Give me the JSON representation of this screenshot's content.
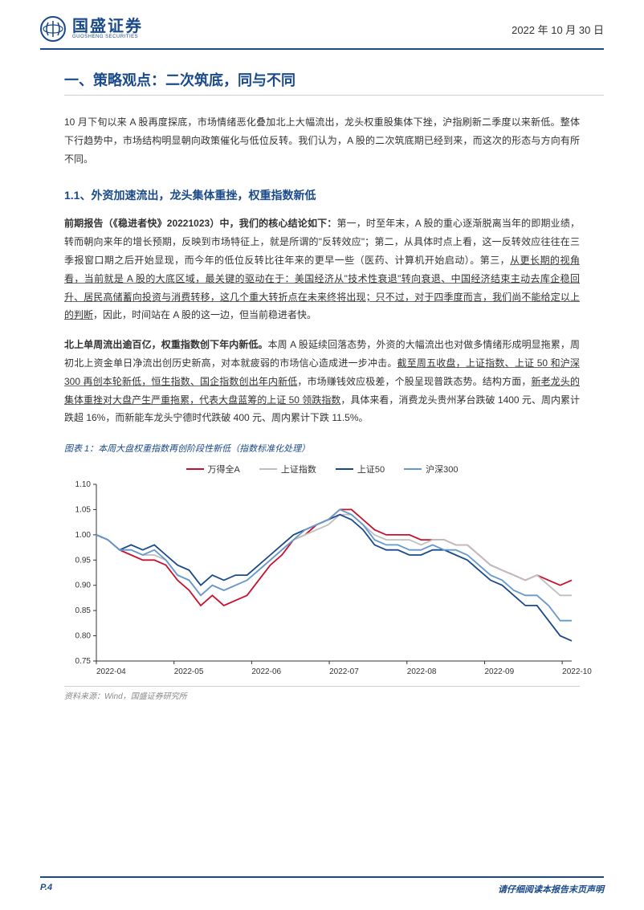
{
  "header": {
    "company_main": "国盛证券",
    "company_sub": "GUOSHENG SECURITIES",
    "date": "2022 年 10 月 30 日",
    "logo_color": "#1a4a8a"
  },
  "section_title": "一、策略观点：二次筑底，同与不同",
  "intro_para": "10 月下旬以来 A 股再度探底，市场情绪恶化叠加北上大幅流出，龙头权重股集体下挫，沪指刷新二季度以来新低。整体下行趋势中，市场结构明显朝向政策催化与低位反转。我们认为，A 股的二次筑底期已经到来，而这次的形态与方向有所不同。",
  "sub_title": "1.1、外资加速流出，龙头集体重挫，权重指数新低",
  "para1_bold": "前期报告（《稳进者快》20221023）中，我们的核心结论如下：",
  "para1_rest": "第一，时至年末，A 股的重心逐渐脱离当年的即期业绩，转而朝向来年的增长预期，反映到市场特征上，就是所谓的\"反转效应\"；第二，从具体时点上看，这一反转效应往往在三季报窗口期之后开始显现，而今年的低位反转比往年来的更早一些（医药、计算机开始启动）。第三，",
  "para1_ul": "从更长期的视角看，当前就是 A 股的大底区域，最关键的驱动在于：美国经济从\"技术性衰退\"转向衰退、中国经济结束主动去库企稳回升、居民高储蓄向投资与消费转移，这几个重大转折点在未来终将出现；只不过，对于四季度而言，我们尚不能给定以上的判断",
  "para1_tail": "，因此，时间站在 A 股的这一边，但当前稳进者快。",
  "para2_bold": "北上单周流出逾百亿，权重指数创下年内新低。",
  "para2_rest": "本周 A 股延续回落态势，外资的大幅流出也对做多情绪形成明显拖累，周初北上资金单日净流出创历史新高，对本就疲弱的市场信心造成进一步冲击。",
  "para2_ul1": "截至周五收盘，上证指数、上证 50 和沪深 300 再创本轮新低，恒生指数、国企指数创出年内新低",
  "para2_mid": "，市场赚钱效应极差，个股呈现普跌态势。结构方面，",
  "para2_ul2": "新老龙头的集体重挫对大盘产生严重拖累，代表大盘蓝筹的上证 50 领跌指数",
  "para2_tail": "，具体来看，消费龙头贵州茅台跌破 1400 元、周内累计跌超 16%，而新能车龙头宁德时代跌破 400 元、周内累计下跌 11.5%。",
  "chart": {
    "caption": "图表 1：本周大盘权重指数再创阶段性新低（指数标准化处理）",
    "source": "资料来源：Wind，国盛证券研究所",
    "type": "line",
    "x_labels": [
      "2022-04",
      "2022-05",
      "2022-06",
      "2022-07",
      "2022-08",
      "2022-09",
      "2022-10"
    ],
    "ylim": [
      0.75,
      1.1
    ],
    "ytick_step": 0.05,
    "background_color": "#ffffff",
    "axis_color": "#333333",
    "grid_color": "#ffffff",
    "label_fontsize": 10,
    "line_width": 1.8,
    "series": [
      {
        "name": "万得全A",
        "color": "#c8102e",
        "data": [
          1.0,
          0.99,
          0.97,
          0.96,
          0.95,
          0.95,
          0.94,
          0.91,
          0.89,
          0.86,
          0.88,
          0.86,
          0.87,
          0.88,
          0.91,
          0.94,
          0.96,
          0.99,
          1.0,
          1.02,
          1.03,
          1.05,
          1.05,
          1.03,
          1.01,
          1.0,
          1.0,
          1.0,
          0.99,
          0.99,
          0.99,
          0.98,
          0.98,
          0.96,
          0.94,
          0.93,
          0.92,
          0.91,
          0.92,
          0.91,
          0.9,
          0.91
        ]
      },
      {
        "name": "上证指数",
        "color": "#bfbfbf",
        "data": [
          1.0,
          0.99,
          0.97,
          0.97,
          0.96,
          0.96,
          0.95,
          0.92,
          0.91,
          0.88,
          0.9,
          0.89,
          0.9,
          0.91,
          0.93,
          0.95,
          0.97,
          0.99,
          1.0,
          1.01,
          1.02,
          1.04,
          1.04,
          1.02,
          1.0,
          0.99,
          0.99,
          0.99,
          0.98,
          0.99,
          0.99,
          0.98,
          0.98,
          0.96,
          0.94,
          0.93,
          0.92,
          0.91,
          0.92,
          0.9,
          0.88,
          0.88
        ]
      },
      {
        "name": "上证50",
        "color": "#1a4a8a",
        "data": [
          1.0,
          0.99,
          0.97,
          0.98,
          0.97,
          0.98,
          0.96,
          0.94,
          0.93,
          0.9,
          0.92,
          0.91,
          0.92,
          0.92,
          0.94,
          0.96,
          0.98,
          1.0,
          1.01,
          1.02,
          1.03,
          1.04,
          1.03,
          1.01,
          0.98,
          0.97,
          0.97,
          0.96,
          0.96,
          0.97,
          0.97,
          0.96,
          0.95,
          0.93,
          0.91,
          0.9,
          0.88,
          0.86,
          0.86,
          0.83,
          0.8,
          0.79
        ]
      },
      {
        "name": "沪深300",
        "color": "#6699cc",
        "data": [
          1.0,
          0.99,
          0.97,
          0.97,
          0.96,
          0.97,
          0.95,
          0.92,
          0.91,
          0.88,
          0.9,
          0.89,
          0.9,
          0.91,
          0.93,
          0.95,
          0.97,
          0.99,
          1.01,
          1.02,
          1.03,
          1.05,
          1.04,
          1.02,
          0.99,
          0.98,
          0.98,
          0.97,
          0.97,
          0.98,
          0.97,
          0.97,
          0.96,
          0.94,
          0.92,
          0.91,
          0.89,
          0.88,
          0.88,
          0.86,
          0.83,
          0.83
        ]
      }
    ]
  },
  "footer": {
    "page": "P.4",
    "disclaimer": "请仔细阅读本报告末页声明"
  }
}
